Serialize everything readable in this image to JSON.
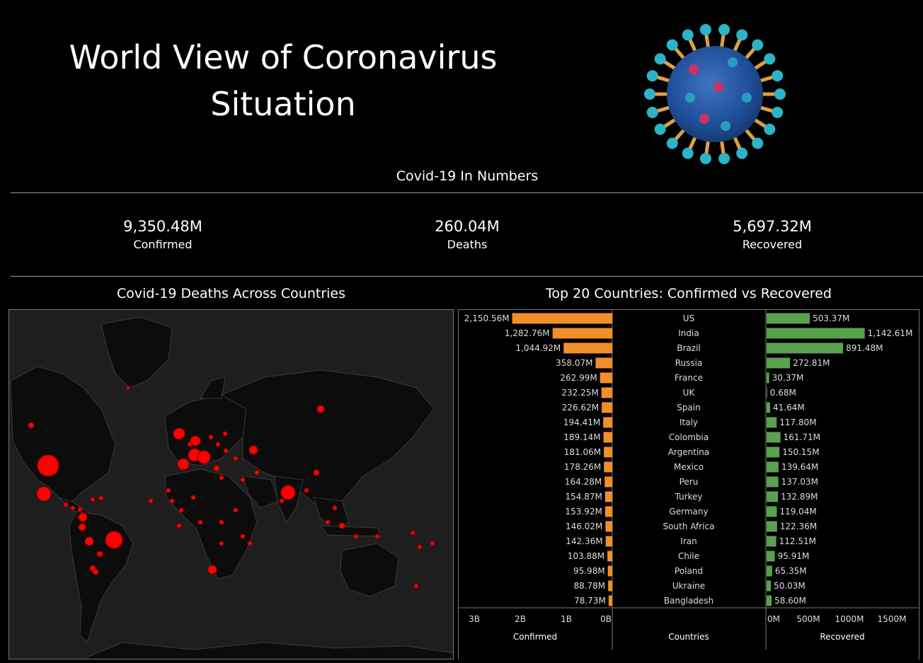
{
  "header": {
    "title_line1": "World View of Coronavirus",
    "title_line2": "Situation"
  },
  "numbers": {
    "title": "Covid-19 In Numbers",
    "kpis": [
      {
        "value": "9,350.48M",
        "label": "Confirmed"
      },
      {
        "value": "260.04M",
        "label": "Deaths"
      },
      {
        "value": "5,697.32M",
        "label": "Recovered"
      }
    ]
  },
  "map": {
    "title": "Covid-19 Deaths Across Countries",
    "bubble_color": "#ff0000",
    "land_color": "#0c0c0c",
    "ocean_color": "#1e1e1e"
  },
  "chart": {
    "title": "Top 20 Countries: Confirmed vs Recovered",
    "confirmed_axis_title": "Confirmed",
    "countries_axis_title": "Countries",
    "recovered_axis_title": "Recovered"
  },
  "chart_data": {
    "type": "bar",
    "categories": [
      "US",
      "India",
      "Brazil",
      "Russia",
      "France",
      "UK",
      "Spain",
      "Italy",
      "Colombia",
      "Argentina",
      "Mexico",
      "Peru",
      "Turkey",
      "Germany",
      "South Africa",
      "Iran",
      "Chile",
      "Poland",
      "Ukraine",
      "Bangladesh"
    ],
    "series": [
      {
        "name": "Confirmed",
        "color": "#f28e2b",
        "values": [
          2150.56,
          1282.76,
          1044.92,
          358.07,
          262.99,
          232.25,
          226.62,
          194.41,
          189.14,
          181.06,
          178.26,
          164.28,
          154.87,
          153.92,
          146.02,
          142.36,
          103.88,
          95.98,
          88.78,
          78.73
        ],
        "labels": [
          "2,150.56M",
          "1,282.76M",
          "1,044.92M",
          "358.07M",
          "262.99M",
          "232.25M",
          "226.62M",
          "194.41M",
          "189.14M",
          "181.06M",
          "178.26M",
          "164.28M",
          "154.87M",
          "153.92M",
          "146.02M",
          "142.36M",
          "103.88M",
          "95.98M",
          "88.78M",
          "78.73M"
        ],
        "ticks": [
          "3B",
          "2B",
          "1B",
          "0B"
        ],
        "xlim": [
          0,
          3200
        ]
      },
      {
        "name": "Recovered",
        "color": "#59a14f",
        "values": [
          503.37,
          1142.61,
          891.48,
          272.81,
          30.37,
          0.68,
          41.64,
          117.8,
          161.71,
          150.15,
          139.64,
          137.03,
          132.89,
          119.04,
          122.36,
          112.51,
          95.91,
          65.35,
          50.03,
          58.6
        ],
        "labels": [
          "503.37M",
          "1,142.61M",
          "891.48M",
          "272.81M",
          "30.37M",
          "0.68M",
          "41.64M",
          "117.80M",
          "161.71M",
          "150.15M",
          "139.64M",
          "137.03M",
          "132.89M",
          "119.04M",
          "122.36M",
          "112.51M",
          "95.91M",
          "65.35M",
          "50.03M",
          "58.60M"
        ],
        "ticks": [
          "0M",
          "500M",
          "1000M",
          "1500M"
        ],
        "xlim": [
          0,
          1650
        ]
      }
    ]
  }
}
